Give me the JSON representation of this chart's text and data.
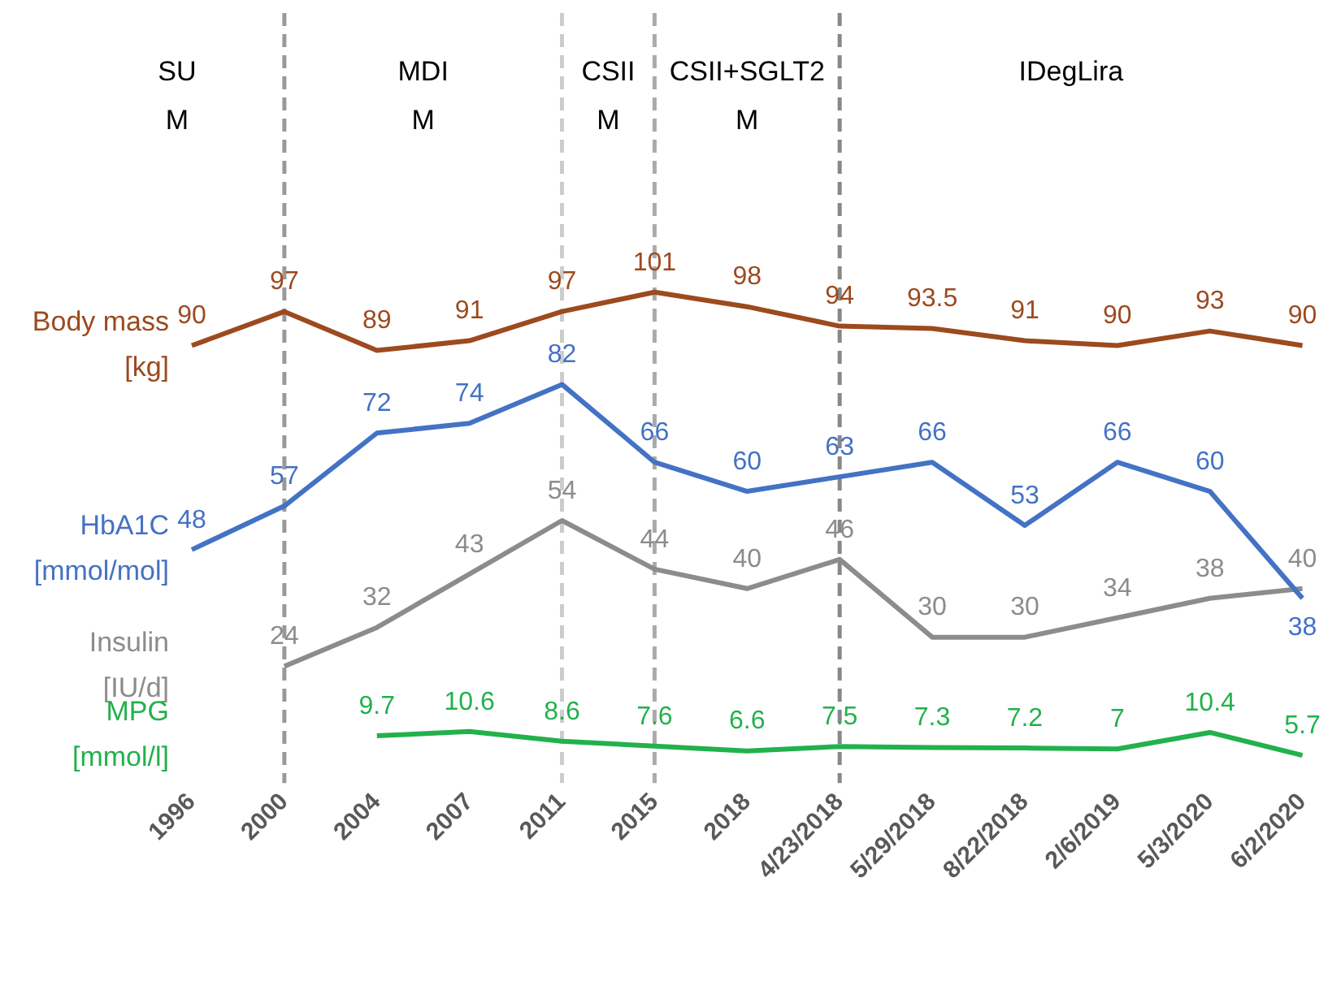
{
  "chart_data": {
    "type": "line",
    "categories": [
      "1996",
      "2000",
      "2004",
      "2007",
      "2011",
      "2015",
      "2018",
      "4/23/2018",
      "5/29/2018",
      "8/22/2018",
      "2/6/2019",
      "5/3/2020",
      "6/2/2020"
    ],
    "series": [
      {
        "name": "Body mass\n[kg]",
        "color": "#9c4a1e",
        "values": [
          90,
          97,
          89,
          91,
          97,
          101,
          98,
          94,
          93.5,
          91,
          90,
          93,
          90
        ]
      },
      {
        "name": "HbA1C\n[mmol/mol]",
        "color": "#4472c4",
        "values": [
          48,
          57,
          72,
          74,
          82,
          66,
          60,
          63,
          66,
          53,
          66,
          60,
          38
        ]
      },
      {
        "name": "Insulin\n[IU/d]",
        "color": "#8c8c8c",
        "values": [
          null,
          24,
          32,
          43,
          54,
          44,
          40,
          46,
          30,
          30,
          34,
          38,
          40
        ]
      },
      {
        "name": "MPG\n[mmol/l]",
        "color": "#22b14c",
        "values": [
          null,
          null,
          9.7,
          10.6,
          8.6,
          7.6,
          6.6,
          7.5,
          7.3,
          7.2,
          7,
          10.4,
          5.7
        ]
      }
    ],
    "tick_labels": "x",
    "data_labels": true,
    "legend": false,
    "grid": false,
    "marker": "none",
    "line_style": "solid",
    "ref_lines": [
      {
        "axis": "x",
        "value": "2000",
        "color": "#999999",
        "line_style": "dashed"
      },
      {
        "axis": "x",
        "value": "2011",
        "color": "#cccccc",
        "line_style": "dashed"
      },
      {
        "axis": "x",
        "value": "2015",
        "color": "#aaaaaa",
        "line_style": "dashed"
      },
      {
        "axis": "x",
        "value": "4/23/2018",
        "color": "#888888",
        "line_style": "dashed"
      }
    ],
    "annotations": [
      "SU\nM",
      "MDI\nM",
      "CSII\nM",
      "CSII+SGLT2\nM",
      "IDegLira"
    ]
  }
}
